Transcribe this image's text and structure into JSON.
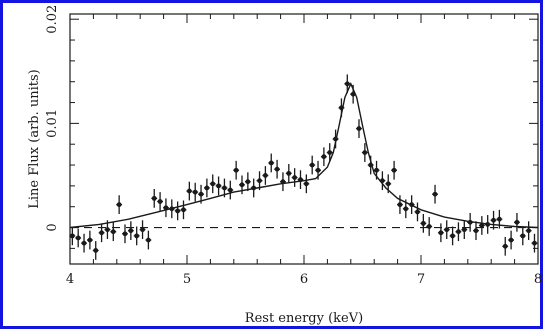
{
  "chart_data": {
    "type": "scatter",
    "xlabel": "Rest energy (keV)",
    "ylabel": "Line Flux (arb. units)",
    "xlim": [
      4,
      8
    ],
    "ylim": [
      -0.0035,
      0.0205
    ],
    "x_ticks": [
      "4",
      "5",
      "6",
      "7",
      "8"
    ],
    "y_ticks": [
      "0",
      "0.01",
      "0.02"
    ],
    "x_tick_values": [
      4,
      5,
      6,
      7,
      8
    ],
    "y_tick_values": [
      0,
      0.01,
      0.02
    ],
    "grid": false,
    "zero_line": "dashed",
    "series": [
      {
        "role": "data",
        "x": [
          4.02,
          4.07,
          4.12,
          4.17,
          4.22,
          4.27,
          4.32,
          4.37,
          4.42,
          4.47,
          4.52,
          4.57,
          4.62,
          4.67,
          4.72,
          4.77,
          4.82,
          4.87,
          4.92,
          4.97,
          5.02,
          5.07,
          5.12,
          5.17,
          5.22,
          5.27,
          5.32,
          5.37,
          5.42,
          5.47,
          5.52,
          5.57,
          5.62,
          5.67,
          5.72,
          5.77,
          5.82,
          5.87,
          5.92,
          5.97,
          6.02,
          6.07,
          6.12,
          6.17,
          6.22,
          6.27,
          6.32,
          6.37,
          6.42,
          6.47,
          6.52,
          6.57,
          6.62,
          6.67,
          6.72,
          6.77,
          6.82,
          6.87,
          6.92,
          6.97,
          7.02,
          7.07,
          7.12,
          7.17,
          7.22,
          7.27,
          7.32,
          7.37,
          7.42,
          7.47,
          7.52,
          7.57,
          7.62,
          7.67,
          7.72,
          7.77,
          7.82,
          7.87,
          7.92,
          7.97
        ],
        "y": [
          -0.0008,
          -0.001,
          -0.0015,
          -0.0012,
          -0.0022,
          -0.0005,
          -0.0002,
          -0.0004,
          0.0022,
          -0.0006,
          -0.0003,
          -0.0008,
          -0.0002,
          -0.0012,
          0.0028,
          0.0025,
          0.0019,
          0.0018,
          0.0016,
          0.0017,
          0.0035,
          0.0034,
          0.0032,
          0.0038,
          0.0042,
          0.004,
          0.0038,
          0.0036,
          0.0055,
          0.0041,
          0.0044,
          0.0038,
          0.0045,
          0.005,
          0.0062,
          0.0056,
          0.0044,
          0.0052,
          0.0048,
          0.0046,
          0.0042,
          0.006,
          0.0055,
          0.0068,
          0.0072,
          0.0085,
          0.0115,
          0.0138,
          0.0128,
          0.0095,
          0.0072,
          0.006,
          0.0055,
          0.0045,
          0.0042,
          0.0055,
          0.0022,
          0.0018,
          0.0022,
          0.0015,
          0.0004,
          0.0001,
          0.0032,
          -0.0005,
          -0.0002,
          -0.0008,
          -0.0004,
          -0.0002,
          0.0005,
          -0.0003,
          0.0002,
          0.0003,
          0.0007,
          0.0008,
          -0.0018,
          -0.0012,
          0.0005,
          -0.0008,
          -0.0003,
          -0.0015
        ],
        "yerr": 0.0009
      },
      {
        "role": "model",
        "x": [
          4.0,
          4.25,
          4.5,
          4.75,
          5.0,
          5.2,
          5.4,
          5.6,
          5.8,
          6.0,
          6.1,
          6.2,
          6.25,
          6.3,
          6.35,
          6.4,
          6.45,
          6.5,
          6.55,
          6.6,
          6.7,
          6.8,
          7.0,
          7.2,
          7.4,
          7.6,
          7.8,
          8.0
        ],
        "y": [
          0.0,
          0.0003,
          0.0008,
          0.0015,
          0.0022,
          0.0028,
          0.0034,
          0.0038,
          0.0042,
          0.0045,
          0.0047,
          0.0058,
          0.0072,
          0.0098,
          0.0125,
          0.0138,
          0.0125,
          0.0098,
          0.0072,
          0.0052,
          0.0038,
          0.0028,
          0.0017,
          0.001,
          0.0006,
          0.0003,
          0.0001,
          0.0
        ]
      }
    ]
  }
}
